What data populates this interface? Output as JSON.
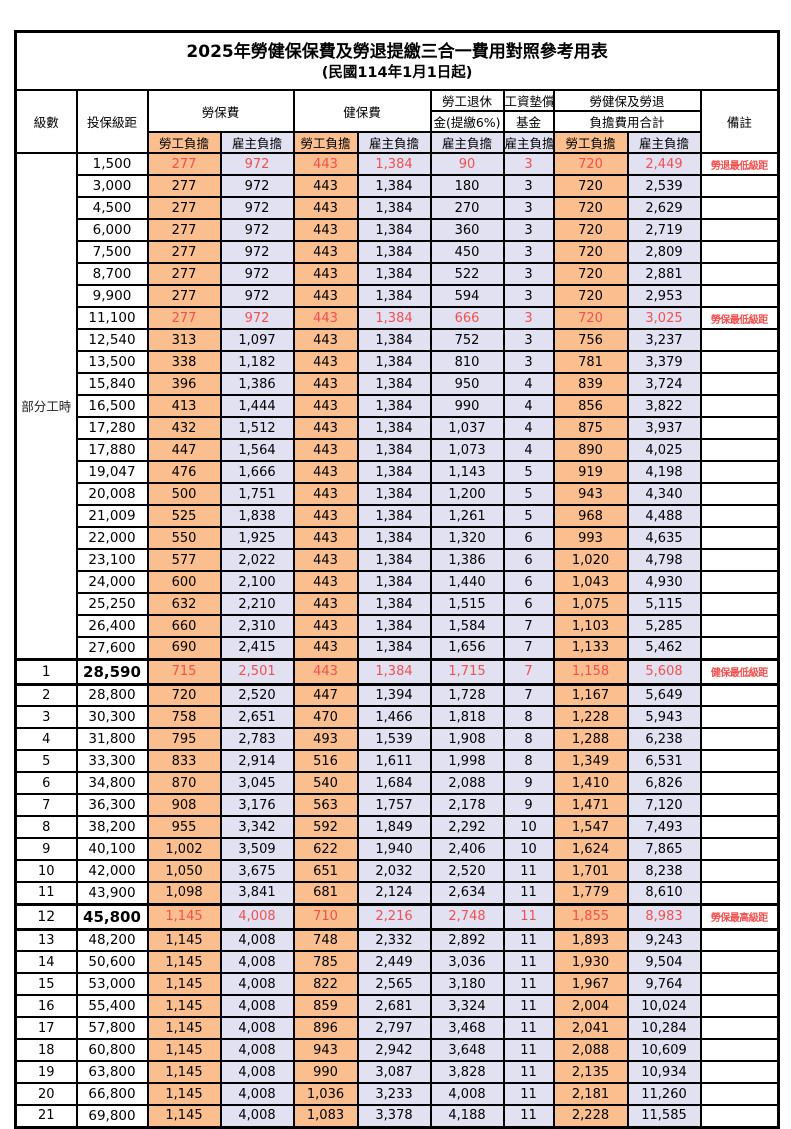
{
  "title": "2025年勞健保保費及勞退提繳三合一費用對照參考用表",
  "subtitle": "(民國114年1月1日起)",
  "colors": {
    "employee_burden_bg": "#FBBF8F",
    "employer_burden_bg": "#E2E1F2",
    "highlight_red": "#F05050",
    "border": "#000000"
  },
  "header": {
    "level": "級數",
    "bracket": "投保級距",
    "labor_insurance": "勞保費",
    "health_insurance": "健保費",
    "pension_line1": "勞工退休",
    "pension_line2": "金(提繳6%)",
    "wage_fund_line1": "工資墊償",
    "wage_fund_line2": "基金",
    "total_line1": "勞健保及勞退",
    "total_line2": "負擔費用合計",
    "remark": "備註",
    "employee": "勞工負擔",
    "employer": "雇主負擔"
  },
  "part_time_label": "部分工時",
  "rows": [
    {
      "level": "",
      "bracket": "1,500",
      "li_emp": "277",
      "li_er": "972",
      "hi_emp": "443",
      "hi_er": "1,384",
      "pension": "90",
      "fund": "3",
      "tot_emp": "720",
      "tot_er": "2,449",
      "remark": "勞退最低級距",
      "red": true,
      "section": false
    },
    {
      "level": "",
      "bracket": "3,000",
      "li_emp": "277",
      "li_er": "972",
      "hi_emp": "443",
      "hi_er": "1,384",
      "pension": "180",
      "fund": "3",
      "tot_emp": "720",
      "tot_er": "2,539",
      "remark": "",
      "red": false,
      "section": false
    },
    {
      "level": "",
      "bracket": "4,500",
      "li_emp": "277",
      "li_er": "972",
      "hi_emp": "443",
      "hi_er": "1,384",
      "pension": "270",
      "fund": "3",
      "tot_emp": "720",
      "tot_er": "2,629",
      "remark": "",
      "red": false,
      "section": false
    },
    {
      "level": "",
      "bracket": "6,000",
      "li_emp": "277",
      "li_er": "972",
      "hi_emp": "443",
      "hi_er": "1,384",
      "pension": "360",
      "fund": "3",
      "tot_emp": "720",
      "tot_er": "2,719",
      "remark": "",
      "red": false,
      "section": false
    },
    {
      "level": "",
      "bracket": "7,500",
      "li_emp": "277",
      "li_er": "972",
      "hi_emp": "443",
      "hi_er": "1,384",
      "pension": "450",
      "fund": "3",
      "tot_emp": "720",
      "tot_er": "2,809",
      "remark": "",
      "red": false,
      "section": false
    },
    {
      "level": "",
      "bracket": "8,700",
      "li_emp": "277",
      "li_er": "972",
      "hi_emp": "443",
      "hi_er": "1,384",
      "pension": "522",
      "fund": "3",
      "tot_emp": "720",
      "tot_er": "2,881",
      "remark": "",
      "red": false,
      "section": false
    },
    {
      "level": "",
      "bracket": "9,900",
      "li_emp": "277",
      "li_er": "972",
      "hi_emp": "443",
      "hi_er": "1,384",
      "pension": "594",
      "fund": "3",
      "tot_emp": "720",
      "tot_er": "2,953",
      "remark": "",
      "red": false,
      "section": false
    },
    {
      "level": "",
      "bracket": "11,100",
      "li_emp": "277",
      "li_er": "972",
      "hi_emp": "443",
      "hi_er": "1,384",
      "pension": "666",
      "fund": "3",
      "tot_emp": "720",
      "tot_er": "3,025",
      "remark": "勞保最低級距",
      "red": true,
      "section": false
    },
    {
      "level": "",
      "bracket": "12,540",
      "li_emp": "313",
      "li_er": "1,097",
      "hi_emp": "443",
      "hi_er": "1,384",
      "pension": "752",
      "fund": "3",
      "tot_emp": "756",
      "tot_er": "3,237",
      "remark": "",
      "red": false,
      "section": false
    },
    {
      "level": "",
      "bracket": "13,500",
      "li_emp": "338",
      "li_er": "1,182",
      "hi_emp": "443",
      "hi_er": "1,384",
      "pension": "810",
      "fund": "3",
      "tot_emp": "781",
      "tot_er": "3,379",
      "remark": "",
      "red": false,
      "section": false
    },
    {
      "level": "",
      "bracket": "15,840",
      "li_emp": "396",
      "li_er": "1,386",
      "hi_emp": "443",
      "hi_er": "1,384",
      "pension": "950",
      "fund": "4",
      "tot_emp": "839",
      "tot_er": "3,724",
      "remark": "",
      "red": false,
      "section": false
    },
    {
      "level": "",
      "bracket": "16,500",
      "li_emp": "413",
      "li_er": "1,444",
      "hi_emp": "443",
      "hi_er": "1,384",
      "pension": "990",
      "fund": "4",
      "tot_emp": "856",
      "tot_er": "3,822",
      "remark": "",
      "red": false,
      "section": false
    },
    {
      "level": "",
      "bracket": "17,280",
      "li_emp": "432",
      "li_er": "1,512",
      "hi_emp": "443",
      "hi_er": "1,384",
      "pension": "1,037",
      "fund": "4",
      "tot_emp": "875",
      "tot_er": "3,937",
      "remark": "",
      "red": false,
      "section": false
    },
    {
      "level": "",
      "bracket": "17,880",
      "li_emp": "447",
      "li_er": "1,564",
      "hi_emp": "443",
      "hi_er": "1,384",
      "pension": "1,073",
      "fund": "4",
      "tot_emp": "890",
      "tot_er": "4,025",
      "remark": "",
      "red": false,
      "section": false
    },
    {
      "level": "",
      "bracket": "19,047",
      "li_emp": "476",
      "li_er": "1,666",
      "hi_emp": "443",
      "hi_er": "1,384",
      "pension": "1,143",
      "fund": "5",
      "tot_emp": "919",
      "tot_er": "4,198",
      "remark": "",
      "red": false,
      "section": false
    },
    {
      "level": "",
      "bracket": "20,008",
      "li_emp": "500",
      "li_er": "1,751",
      "hi_emp": "443",
      "hi_er": "1,384",
      "pension": "1,200",
      "fund": "5",
      "tot_emp": "943",
      "tot_er": "4,340",
      "remark": "",
      "red": false,
      "section": false
    },
    {
      "level": "",
      "bracket": "21,009",
      "li_emp": "525",
      "li_er": "1,838",
      "hi_emp": "443",
      "hi_er": "1,384",
      "pension": "1,261",
      "fund": "5",
      "tot_emp": "968",
      "tot_er": "4,488",
      "remark": "",
      "red": false,
      "section": false
    },
    {
      "level": "",
      "bracket": "22,000",
      "li_emp": "550",
      "li_er": "1,925",
      "hi_emp": "443",
      "hi_er": "1,384",
      "pension": "1,320",
      "fund": "6",
      "tot_emp": "993",
      "tot_er": "4,635",
      "remark": "",
      "red": false,
      "section": false
    },
    {
      "level": "",
      "bracket": "23,100",
      "li_emp": "577",
      "li_er": "2,022",
      "hi_emp": "443",
      "hi_er": "1,384",
      "pension": "1,386",
      "fund": "6",
      "tot_emp": "1,020",
      "tot_er": "4,798",
      "remark": "",
      "red": false,
      "section": false
    },
    {
      "level": "",
      "bracket": "24,000",
      "li_emp": "600",
      "li_er": "2,100",
      "hi_emp": "443",
      "hi_er": "1,384",
      "pension": "1,440",
      "fund": "6",
      "tot_emp": "1,043",
      "tot_er": "4,930",
      "remark": "",
      "red": false,
      "section": false
    },
    {
      "level": "",
      "bracket": "25,250",
      "li_emp": "632",
      "li_er": "2,210",
      "hi_emp": "443",
      "hi_er": "1,384",
      "pension": "1,515",
      "fund": "6",
      "tot_emp": "1,075",
      "tot_er": "5,115",
      "remark": "",
      "red": false,
      "section": false
    },
    {
      "level": "",
      "bracket": "26,400",
      "li_emp": "660",
      "li_er": "2,310",
      "hi_emp": "443",
      "hi_er": "1,384",
      "pension": "1,584",
      "fund": "7",
      "tot_emp": "1,103",
      "tot_er": "5,285",
      "remark": "",
      "red": false,
      "section": false
    },
    {
      "level": "",
      "bracket": "27,600",
      "li_emp": "690",
      "li_er": "2,415",
      "hi_emp": "443",
      "hi_er": "1,384",
      "pension": "1,656",
      "fund": "7",
      "tot_emp": "1,133",
      "tot_er": "5,462",
      "remark": "",
      "red": false,
      "section": false
    },
    {
      "level": "1",
      "bracket": "28,590",
      "li_emp": "715",
      "li_er": "2,501",
      "hi_emp": "443",
      "hi_er": "1,384",
      "pension": "1,715",
      "fund": "7",
      "tot_emp": "1,158",
      "tot_er": "5,608",
      "remark": "健保最低級距",
      "red": true,
      "section": true
    },
    {
      "level": "2",
      "bracket": "28,800",
      "li_emp": "720",
      "li_er": "2,520",
      "hi_emp": "447",
      "hi_er": "1,394",
      "pension": "1,728",
      "fund": "7",
      "tot_emp": "1,167",
      "tot_er": "5,649",
      "remark": "",
      "red": false,
      "section": false
    },
    {
      "level": "3",
      "bracket": "30,300",
      "li_emp": "758",
      "li_er": "2,651",
      "hi_emp": "470",
      "hi_er": "1,466",
      "pension": "1,818",
      "fund": "8",
      "tot_emp": "1,228",
      "tot_er": "5,943",
      "remark": "",
      "red": false,
      "section": false
    },
    {
      "level": "4",
      "bracket": "31,800",
      "li_emp": "795",
      "li_er": "2,783",
      "hi_emp": "493",
      "hi_er": "1,539",
      "pension": "1,908",
      "fund": "8",
      "tot_emp": "1,288",
      "tot_er": "6,238",
      "remark": "",
      "red": false,
      "section": false
    },
    {
      "level": "5",
      "bracket": "33,300",
      "li_emp": "833",
      "li_er": "2,914",
      "hi_emp": "516",
      "hi_er": "1,611",
      "pension": "1,998",
      "fund": "8",
      "tot_emp": "1,349",
      "tot_er": "6,531",
      "remark": "",
      "red": false,
      "section": false
    },
    {
      "level": "6",
      "bracket": "34,800",
      "li_emp": "870",
      "li_er": "3,045",
      "hi_emp": "540",
      "hi_er": "1,684",
      "pension": "2,088",
      "fund": "9",
      "tot_emp": "1,410",
      "tot_er": "6,826",
      "remark": "",
      "red": false,
      "section": false
    },
    {
      "level": "7",
      "bracket": "36,300",
      "li_emp": "908",
      "li_er": "3,176",
      "hi_emp": "563",
      "hi_er": "1,757",
      "pension": "2,178",
      "fund": "9",
      "tot_emp": "1,471",
      "tot_er": "7,120",
      "remark": "",
      "red": false,
      "section": false
    },
    {
      "level": "8",
      "bracket": "38,200",
      "li_emp": "955",
      "li_er": "3,342",
      "hi_emp": "592",
      "hi_er": "1,849",
      "pension": "2,292",
      "fund": "10",
      "tot_emp": "1,547",
      "tot_er": "7,493",
      "remark": "",
      "red": false,
      "section": false
    },
    {
      "level": "9",
      "bracket": "40,100",
      "li_emp": "1,002",
      "li_er": "3,509",
      "hi_emp": "622",
      "hi_er": "1,940",
      "pension": "2,406",
      "fund": "10",
      "tot_emp": "1,624",
      "tot_er": "7,865",
      "remark": "",
      "red": false,
      "section": false
    },
    {
      "level": "10",
      "bracket": "42,000",
      "li_emp": "1,050",
      "li_er": "3,675",
      "hi_emp": "651",
      "hi_er": "2,032",
      "pension": "2,520",
      "fund": "11",
      "tot_emp": "1,701",
      "tot_er": "8,238",
      "remark": "",
      "red": false,
      "section": false
    },
    {
      "level": "11",
      "bracket": "43,900",
      "li_emp": "1,098",
      "li_er": "3,841",
      "hi_emp": "681",
      "hi_er": "2,124",
      "pension": "2,634",
      "fund": "11",
      "tot_emp": "1,779",
      "tot_er": "8,610",
      "remark": "",
      "red": false,
      "section": false
    },
    {
      "level": "12",
      "bracket": "45,800",
      "li_emp": "1,145",
      "li_er": "4,008",
      "hi_emp": "710",
      "hi_er": "2,216",
      "pension": "2,748",
      "fund": "11",
      "tot_emp": "1,855",
      "tot_er": "8,983",
      "remark": "勞保最高級距",
      "red": true,
      "section": true
    },
    {
      "level": "13",
      "bracket": "48,200",
      "li_emp": "1,145",
      "li_er": "4,008",
      "hi_emp": "748",
      "hi_er": "2,332",
      "pension": "2,892",
      "fund": "11",
      "tot_emp": "1,893",
      "tot_er": "9,243",
      "remark": "",
      "red": false,
      "section": false
    },
    {
      "level": "14",
      "bracket": "50,600",
      "li_emp": "1,145",
      "li_er": "4,008",
      "hi_emp": "785",
      "hi_er": "2,449",
      "pension": "3,036",
      "fund": "11",
      "tot_emp": "1,930",
      "tot_er": "9,504",
      "remark": "",
      "red": false,
      "section": false
    },
    {
      "level": "15",
      "bracket": "53,000",
      "li_emp": "1,145",
      "li_er": "4,008",
      "hi_emp": "822",
      "hi_er": "2,565",
      "pension": "3,180",
      "fund": "11",
      "tot_emp": "1,967",
      "tot_er": "9,764",
      "remark": "",
      "red": false,
      "section": false
    },
    {
      "level": "16",
      "bracket": "55,400",
      "li_emp": "1,145",
      "li_er": "4,008",
      "hi_emp": "859",
      "hi_er": "2,681",
      "pension": "3,324",
      "fund": "11",
      "tot_emp": "2,004",
      "tot_er": "10,024",
      "remark": "",
      "red": false,
      "section": false
    },
    {
      "level": "17",
      "bracket": "57,800",
      "li_emp": "1,145",
      "li_er": "4,008",
      "hi_emp": "896",
      "hi_er": "2,797",
      "pension": "3,468",
      "fund": "11",
      "tot_emp": "2,041",
      "tot_er": "10,284",
      "remark": "",
      "red": false,
      "section": false
    },
    {
      "level": "18",
      "bracket": "60,800",
      "li_emp": "1,145",
      "li_er": "4,008",
      "hi_emp": "943",
      "hi_er": "2,942",
      "pension": "3,648",
      "fund": "11",
      "tot_emp": "2,088",
      "tot_er": "10,609",
      "remark": "",
      "red": false,
      "section": false
    },
    {
      "level": "19",
      "bracket": "63,800",
      "li_emp": "1,145",
      "li_er": "4,008",
      "hi_emp": "990",
      "hi_er": "3,087",
      "pension": "3,828",
      "fund": "11",
      "tot_emp": "2,135",
      "tot_er": "10,934",
      "remark": "",
      "red": false,
      "section": false
    },
    {
      "level": "20",
      "bracket": "66,800",
      "li_emp": "1,145",
      "li_er": "4,008",
      "hi_emp": "1,036",
      "hi_er": "3,233",
      "pension": "4,008",
      "fund": "11",
      "tot_emp": "2,181",
      "tot_er": "11,260",
      "remark": "",
      "red": false,
      "section": false
    },
    {
      "level": "21",
      "bracket": "69,800",
      "li_emp": "1,145",
      "li_er": "4,008",
      "hi_emp": "1,083",
      "hi_er": "3,378",
      "pension": "4,188",
      "fund": "11",
      "tot_emp": "2,228",
      "tot_er": "11,585",
      "remark": "",
      "red": false,
      "section": false
    }
  ]
}
